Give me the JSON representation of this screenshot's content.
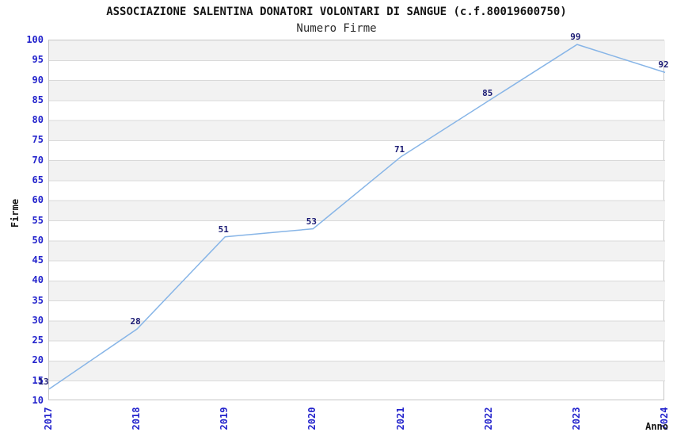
{
  "header": {
    "title": "ASSOCIAZIONE SALENTINA DONATORI VOLONTARI DI SANGUE (c.f.80019600750)",
    "subtitle": "Numero Firme"
  },
  "chart_data": {
    "type": "line",
    "x": [
      "2017",
      "2018",
      "2019",
      "2020",
      "2021",
      "2022",
      "2023",
      "2024"
    ],
    "values": [
      13,
      28,
      51,
      53,
      71,
      85,
      99,
      92
    ],
    "title": "ASSOCIAZIONE SALENTINA DONATORI VOLONTARI DI SANGUE (c.f.80019600750)",
    "subtitle": "Numero Firme",
    "xlabel": "Anno",
    "ylabel": "Firme",
    "ylim": [
      10,
      100
    ],
    "ytick_step": 5,
    "grid": "horizontal-alternating-bands",
    "legend": "none",
    "point_labels_shown": true,
    "colors": {
      "line": "#87b5e7",
      "tick_label": "#2323cc",
      "value_label": "#1a1a73",
      "band_fill": "#f2f2f2",
      "grid_line": "#d9d9d9",
      "plot_border": "#c6c6c6",
      "title_text": "#141414"
    }
  }
}
